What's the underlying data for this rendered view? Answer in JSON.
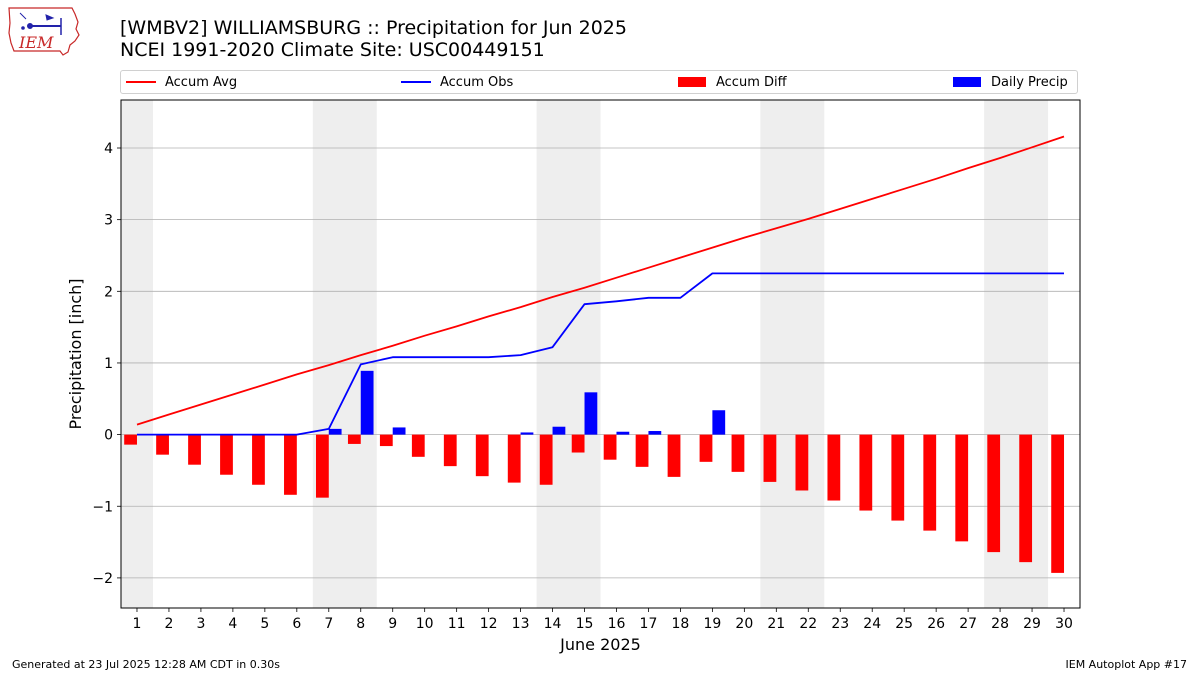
{
  "header": {
    "title_line1": "[WMBV2] WILLIAMSBURG :: Precipitation for Jun 2025",
    "title_line2": "NCEI 1991-2020 Climate Site: USC00449151",
    "logo_text": "IEM"
  },
  "legend": {
    "accum_avg": "Accum Avg",
    "accum_obs": "Accum Obs",
    "accum_diff": "Accum Diff",
    "daily_precip": "Daily Precip"
  },
  "footer": {
    "generated": "Generated at 23 Jul 2025 12:28 AM CDT in 0.30s",
    "app": "IEM Autoplot App #17"
  },
  "colors": {
    "accum_avg": "#ff0000",
    "accum_obs": "#0000ff",
    "accum_diff": "#ff0000",
    "daily_precip": "#0000ff",
    "weekend_shade": "#eeeeee",
    "grid": "#b0b0b0"
  },
  "chart_data": {
    "type": "bar",
    "xlabel": "June 2025",
    "ylabel": "Precipitation [inch]",
    "ylim": [
      -2.42,
      4.67
    ],
    "yticks": [
      -2,
      -1,
      0,
      1,
      2,
      3,
      4
    ],
    "ytick_labels": [
      "−2",
      "−1",
      "0",
      "1",
      "2",
      "3",
      "4"
    ],
    "grid": "horizontal",
    "legend_position": "top",
    "days": [
      1,
      2,
      3,
      4,
      5,
      6,
      7,
      8,
      9,
      10,
      11,
      12,
      13,
      14,
      15,
      16,
      17,
      18,
      19,
      20,
      21,
      22,
      23,
      24,
      25,
      26,
      27,
      28,
      29,
      30
    ],
    "shaded_day_ranges": [
      [
        0.5,
        1.5
      ],
      [
        6.5,
        8.5
      ],
      [
        13.5,
        15.5
      ],
      [
        20.5,
        22.5
      ],
      [
        27.5,
        29.5
      ]
    ],
    "series": [
      {
        "name": "Accum Avg",
        "kind": "line",
        "values": [
          0.14,
          0.28,
          0.42,
          0.56,
          0.7,
          0.84,
          0.97,
          1.11,
          1.24,
          1.38,
          1.51,
          1.65,
          1.78,
          1.92,
          2.05,
          2.19,
          2.33,
          2.47,
          2.61,
          2.75,
          2.88,
          3.01,
          3.15,
          3.29,
          3.43,
          3.57,
          3.72,
          3.86,
          4.01,
          4.16
        ]
      },
      {
        "name": "Accum Obs",
        "kind": "line",
        "values": [
          0,
          0,
          0,
          0,
          0,
          0,
          0.08,
          0.98,
          1.08,
          1.08,
          1.08,
          1.08,
          1.11,
          1.22,
          1.82,
          1.86,
          1.91,
          1.91,
          2.25,
          2.25,
          2.25,
          2.25,
          2.25,
          2.25,
          2.25,
          2.25,
          2.25,
          2.25,
          2.25,
          2.25
        ]
      },
      {
        "name": "Accum Diff",
        "kind": "bar",
        "values": [
          -0.14,
          -0.28,
          -0.42,
          -0.56,
          -0.7,
          -0.84,
          -0.88,
          -0.13,
          -0.16,
          -0.31,
          -0.44,
          -0.58,
          -0.67,
          -0.7,
          -0.25,
          -0.35,
          -0.45,
          -0.59,
          -0.38,
          -0.52,
          -0.66,
          -0.78,
          -0.92,
          -1.06,
          -1.2,
          -1.34,
          -1.49,
          -1.64,
          -1.78,
          -1.93
        ]
      },
      {
        "name": "Daily Precip",
        "kind": "bar",
        "values": [
          0,
          0,
          0,
          0,
          0,
          0,
          0.08,
          0.89,
          0.1,
          0,
          0,
          0,
          0.03,
          0.11,
          0.59,
          0.04,
          0.05,
          0,
          0.34,
          0,
          0,
          0,
          0,
          0,
          0,
          0,
          0,
          0,
          0,
          0
        ]
      }
    ]
  }
}
